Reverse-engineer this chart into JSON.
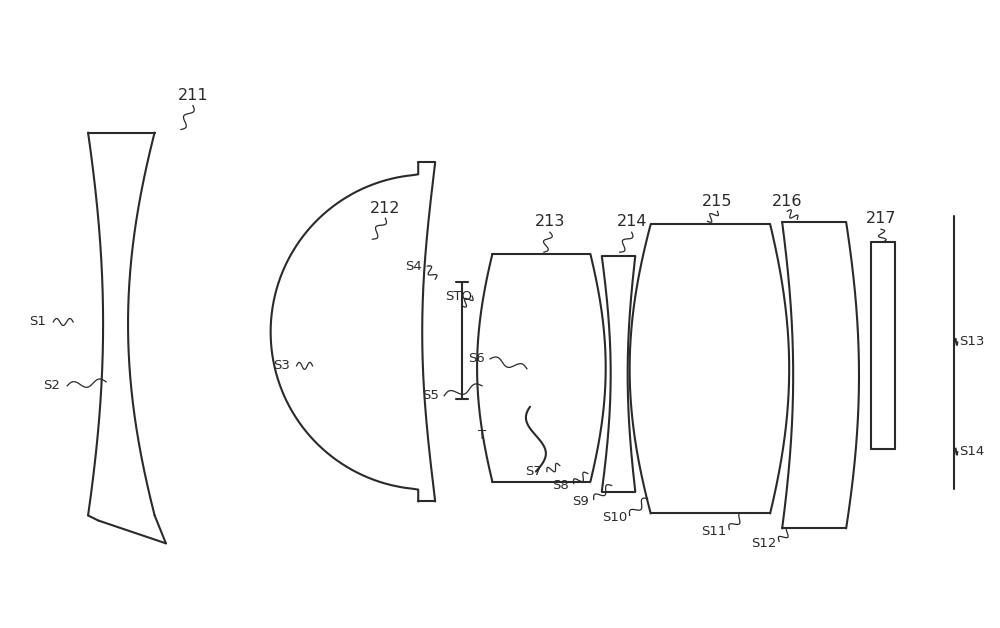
{
  "bg_color": "#ffffff",
  "line_color": "#2a2a2a",
  "line_width": 1.5,
  "figsize": [
    10.0,
    6.28
  ],
  "dpi": 100,
  "xlim": [
    0,
    10
  ],
  "ylim": [
    1.0,
    6.8
  ]
}
